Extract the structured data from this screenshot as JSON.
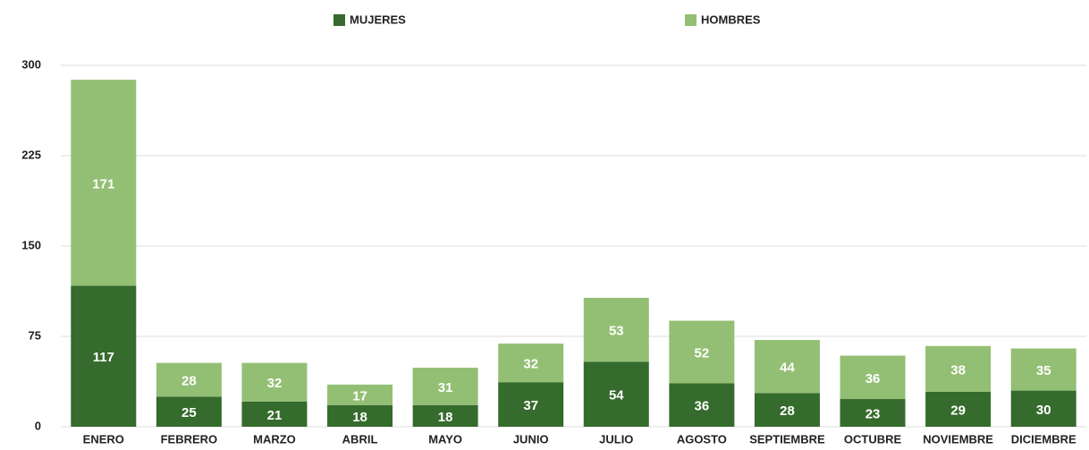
{
  "chart_data": {
    "type": "stacked_bar",
    "categories": [
      "ENERO",
      "FEBRERO",
      "MARZO",
      "ABRIL",
      "MAYO",
      "JUNIO",
      "JULIO",
      "AGOSTO",
      "SEPTIEMBRE",
      "OCTUBRE",
      "NOVIEMBRE",
      "DICIEMBRE"
    ],
    "series": [
      {
        "name": "MUJERES",
        "color": "#356b2c",
        "values": [
          117,
          25,
          21,
          18,
          18,
          37,
          54,
          36,
          28,
          23,
          29,
          30
        ]
      },
      {
        "name": "HOMBRES",
        "color": "#93bf74",
        "values": [
          171,
          28,
          32,
          17,
          31,
          32,
          53,
          52,
          44,
          36,
          38,
          35
        ]
      }
    ],
    "ylim": [
      0,
      300
    ],
    "yticks": [
      0,
      75,
      150,
      225,
      300
    ],
    "grid": true,
    "legend": "top"
  }
}
